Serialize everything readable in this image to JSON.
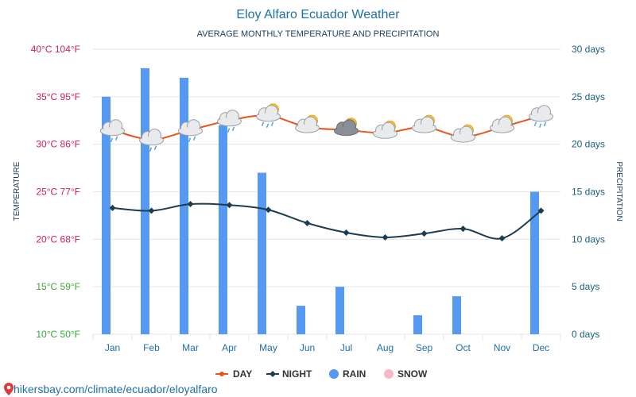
{
  "chart_data": {
    "type": "bar",
    "title": "Eloy Alfaro Ecuador Weather",
    "subtitle": "AVERAGE MONTHLY TEMPERATURE AND PRECIPITATION",
    "categories": [
      "Jan",
      "Feb",
      "Mar",
      "Apr",
      "May",
      "Jun",
      "Jul",
      "Aug",
      "Sep",
      "Oct",
      "Nov",
      "Dec"
    ],
    "y_left": {
      "label": "TEMPERATURE",
      "range_c": [
        10,
        40
      ],
      "ticks": [
        {
          "value": 10,
          "text": "10°C 50°F",
          "color": "#33aa33"
        },
        {
          "value": 15,
          "text": "15°C 59°F",
          "color": "#44aa33"
        },
        {
          "value": 20,
          "text": "20°C 68°F",
          "color": "#cc2255"
        },
        {
          "value": 25,
          "text": "25°C 77°F",
          "color": "#cc2255"
        },
        {
          "value": 30,
          "text": "30°C 86°F",
          "color": "#cc2255"
        },
        {
          "value": 35,
          "text": "35°C 95°F",
          "color": "#cc2255"
        },
        {
          "value": 40,
          "text": "40°C 104°F",
          "color": "#cc2255"
        }
      ]
    },
    "y_right": {
      "label": "PRECIPITATION",
      "range_days": [
        0,
        30
      ],
      "ticks": [
        {
          "value": 0,
          "text": "0 days"
        },
        {
          "value": 5,
          "text": "5 days"
        },
        {
          "value": 10,
          "text": "10 days"
        },
        {
          "value": 15,
          "text": "15 days"
        },
        {
          "value": 20,
          "text": "20 days"
        },
        {
          "value": 25,
          "text": "25 days"
        },
        {
          "value": 30,
          "text": "30 days"
        }
      ],
      "color": "#1a5f7a"
    },
    "series": [
      {
        "name": "DAY",
        "kind": "line",
        "axis": "left",
        "color": "#e8541b",
        "values": [
          31.5,
          30.5,
          31.5,
          32.5,
          33.0,
          31.8,
          31.5,
          31.2,
          31.8,
          30.8,
          31.8,
          33.0
        ]
      },
      {
        "name": "NIGHT",
        "kind": "line",
        "axis": "left",
        "color": "#1d3d4f",
        "values": [
          23.3,
          23.0,
          23.7,
          23.6,
          23.1,
          21.7,
          20.7,
          20.2,
          20.6,
          21.1,
          20.1,
          23.0
        ]
      },
      {
        "name": "RAIN",
        "kind": "bar",
        "axis": "right",
        "color": "#5599f2",
        "values": [
          25,
          28,
          27,
          22,
          17,
          3,
          5,
          0,
          2,
          4,
          0,
          15
        ]
      },
      {
        "name": "SNOW",
        "kind": "bar",
        "axis": "right",
        "color": "#f7b8c8",
        "values": [
          0,
          0,
          0,
          0,
          0,
          0,
          0,
          0,
          0,
          0,
          0,
          0
        ]
      }
    ],
    "weather_icons": [
      "cloud-rain",
      "cloud-rain",
      "cloud-rain",
      "cloud-rain",
      "sun-cloud-rain",
      "sun-cloud",
      "sun-dark-cloud",
      "sun-cloud",
      "sun-cloud",
      "sun-cloud",
      "sun-cloud",
      "cloud-rain"
    ],
    "grid": true,
    "legend": "bottom-center"
  },
  "footer": {
    "url_text": "hikersbay.com/climate/ecuador/eloyalfaro"
  },
  "colors": {
    "title": "#1f6fa8",
    "subtitle": "#1a3c5a",
    "category_text": "#1f6fa8",
    "legend_text": "#333333",
    "footer_text": "#1f6fa8",
    "grid": "#e6e6e6",
    "pin": "#e23a3a"
  }
}
